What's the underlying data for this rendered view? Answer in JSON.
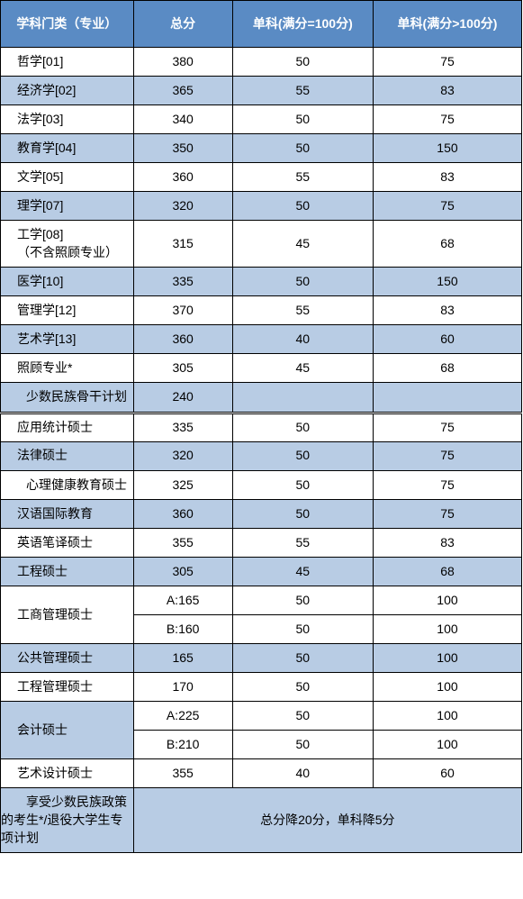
{
  "colors": {
    "header_bg": "#5a8bc4",
    "header_text": "#ffffff",
    "alt_bg": "#b8cce4",
    "plain_bg": "#ffffff",
    "border": "#000000"
  },
  "headers": {
    "col1": "学科门类（专业）",
    "col2": "总分",
    "col3": "单科(满分=100分)",
    "col4": "单科(满分>100分)"
  },
  "section1": [
    {
      "label": "哲学[01]",
      "total": "380",
      "s1": "50",
      "s2": "75",
      "alt": false
    },
    {
      "label": "经济学[02]",
      "total": "365",
      "s1": "55",
      "s2": "83",
      "alt": true
    },
    {
      "label": "法学[03]",
      "total": "340",
      "s1": "50",
      "s2": "75",
      "alt": false
    },
    {
      "label": "教育学[04]",
      "total": "350",
      "s1": "50",
      "s2": "150",
      "alt": true
    },
    {
      "label": "文学[05]",
      "total": "360",
      "s1": "55",
      "s2": "83",
      "alt": false
    },
    {
      "label": "理学[07]",
      "total": "320",
      "s1": "50",
      "s2": "75",
      "alt": true
    },
    {
      "label": "工学[08]\n（不含照顾专业）",
      "total": "315",
      "s1": "45",
      "s2": "68",
      "alt": false,
      "tall": true
    },
    {
      "label": "医学[10]",
      "total": "335",
      "s1": "50",
      "s2": "150",
      "alt": true
    },
    {
      "label": "管理学[12]",
      "total": "370",
      "s1": "55",
      "s2": "83",
      "alt": false
    },
    {
      "label": "艺术学[13]",
      "total": "360",
      "s1": "40",
      "s2": "60",
      "alt": true
    },
    {
      "label": "照顾专业*",
      "total": "305",
      "s1": "45",
      "s2": "68",
      "alt": false
    },
    {
      "label": "少数民族骨干计划",
      "total": "240",
      "s1": "",
      "s2": "",
      "alt": true,
      "wrap": true
    }
  ],
  "section2_simple": [
    {
      "label": "应用统计硕士",
      "total": "335",
      "s1": "50",
      "s2": "75",
      "alt": false
    },
    {
      "label": "法律硕士",
      "total": "320",
      "s1": "50",
      "s2": "75",
      "alt": true
    },
    {
      "label": "心理健康教育硕士",
      "total": "325",
      "s1": "50",
      "s2": "75",
      "alt": false,
      "wrap": true
    },
    {
      "label": "汉语国际教育",
      "total": "360",
      "s1": "50",
      "s2": "75",
      "alt": true
    },
    {
      "label": "英语笔译硕士",
      "total": "355",
      "s1": "55",
      "s2": "83",
      "alt": false
    },
    {
      "label": "工程硕士",
      "total": "305",
      "s1": "45",
      "s2": "68",
      "alt": true
    }
  ],
  "mba": {
    "label": "工商管理硕士",
    "rowA": {
      "total": "A:165",
      "s1": "50",
      "s2": "100"
    },
    "rowB": {
      "total": "B:160",
      "s1": "50",
      "s2": "100"
    }
  },
  "section2_mid": [
    {
      "label": "公共管理硕士",
      "total": "165",
      "s1": "50",
      "s2": "100",
      "alt": true
    },
    {
      "label": "工程管理硕士",
      "total": "170",
      "s1": "50",
      "s2": "100",
      "alt": false
    }
  ],
  "mpacc": {
    "label": "会计硕士",
    "rowA": {
      "total": "A:225",
      "s1": "50",
      "s2": "100"
    },
    "rowB": {
      "total": "B:210",
      "s1": "50",
      "s2": "100"
    }
  },
  "section2_end": [
    {
      "label": "艺术设计硕士",
      "total": "355",
      "s1": "40",
      "s2": "60",
      "alt": false
    }
  ],
  "footnote": {
    "label": "享受少数民族政策的考生*/退役大学生专项计划",
    "note": "总分降20分，单科降5分"
  }
}
